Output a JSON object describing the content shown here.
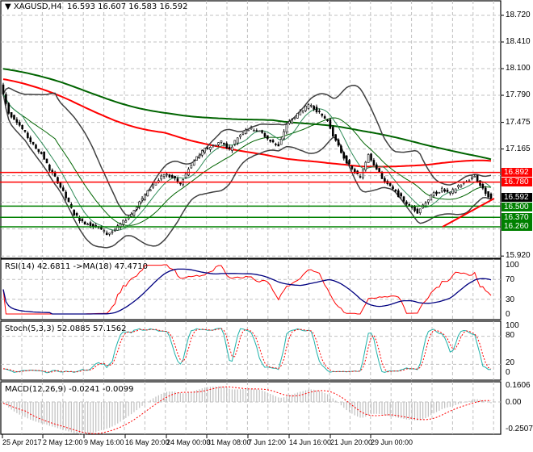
{
  "header": {
    "menu_icon": "triangle-down-icon",
    "symbol": "XAGUSD,H4",
    "ohlc": "16.593 16.607 16.583 16.592"
  },
  "chart_data": {
    "type": "candlestick",
    "symbol": "XAGUSD",
    "timeframe": "H4",
    "price_axis": {
      "range": [
        15.92,
        18.72
      ],
      "ticks": [
        "18.720",
        "18.410",
        "18.100",
        "17.790",
        "17.475",
        "17.165",
        "15.920"
      ]
    },
    "time_labels": [
      "25 Apr 2017",
      "2 May 12:00",
      "9 May 16:00",
      "16 May 20:00",
      "24 May 00:00",
      "31 May 08:00",
      "7 Jun 12:00",
      "14 Jun 16:00",
      "21 Jun 20:00",
      "29 Jun 00:00"
    ],
    "approx_closes": [
      17.912,
      17.584,
      17.49,
      17.349,
      17.208,
      17.114,
      16.927,
      16.786,
      16.598,
      16.41,
      16.316,
      16.288,
      16.251,
      16.176,
      16.222,
      16.316,
      16.41,
      16.551,
      16.664,
      16.786,
      16.88,
      16.833,
      16.758,
      16.927,
      17.067,
      17.161,
      17.208,
      17.255,
      17.161,
      17.302,
      17.396,
      17.396,
      17.349,
      17.255,
      17.208,
      17.443,
      17.537,
      17.631,
      17.678,
      17.584,
      17.49,
      17.255,
      17.067,
      16.927,
      16.833,
      17.114,
      16.927,
      16.786,
      16.692,
      16.598,
      16.504,
      16.438,
      16.551,
      16.645,
      16.692,
      16.645,
      16.739,
      16.786,
      16.852,
      16.692,
      16.592
    ],
    "levels": [
      {
        "value": "16.892",
        "color": "#ff0000"
      },
      {
        "value": "16.780",
        "color": "#ff0000"
      },
      {
        "value": "16.592",
        "color": "#000000"
      },
      {
        "value": "16.500",
        "color": "#008000"
      },
      {
        "value": "16.370",
        "color": "#008000"
      },
      {
        "value": "16.260",
        "color": "#008000"
      }
    ],
    "trendline": {
      "color": "#ff0000",
      "from_price": 16.26,
      "to_price": 16.59
    },
    "rsi": {
      "label": "RSI(14) 42.6811  ->MA(18) 47.4710",
      "ticks": [
        "100",
        "70",
        "30",
        "0"
      ],
      "line_color": "#ff0000",
      "ma_color": "#000080"
    },
    "stoch": {
      "label": "Stoch(5,3,3) 52.0885 57.1562",
      "ticks": [
        "100",
        "80",
        "20",
        "0"
      ],
      "main_color": "#20b2aa",
      "signal_color": "#ff0000"
    },
    "macd": {
      "label": "MACD(12,26,9) -0.0241 -0.0099",
      "ticks": [
        "0.1606",
        "0.00",
        "-0.2507"
      ],
      "hist_color": "#c0c0c0",
      "signal_color": "#ff0000"
    }
  }
}
